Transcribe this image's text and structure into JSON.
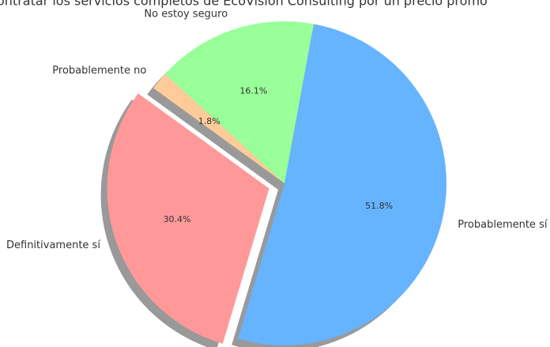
{
  "chart_data": {
    "type": "pie",
    "title": "ontratar los servicios completos de EcoVision Consulting por un precio promo",
    "categories": [
      "Definitivamente sí",
      "Probablemente sí",
      "No estoy seguro",
      "Probablemente no"
    ],
    "values": [
      30.4,
      51.8,
      16.1,
      1.8
    ],
    "value_labels": [
      "30.4%",
      "51.8%",
      "16.1%",
      "1.8%"
    ],
    "colors": [
      "#ff9999",
      "#66b3ff",
      "#99ff99",
      "#ffcc99"
    ],
    "explode": [
      0.1,
      0,
      0,
      0
    ],
    "startangle": 144,
    "shadow": true
  }
}
